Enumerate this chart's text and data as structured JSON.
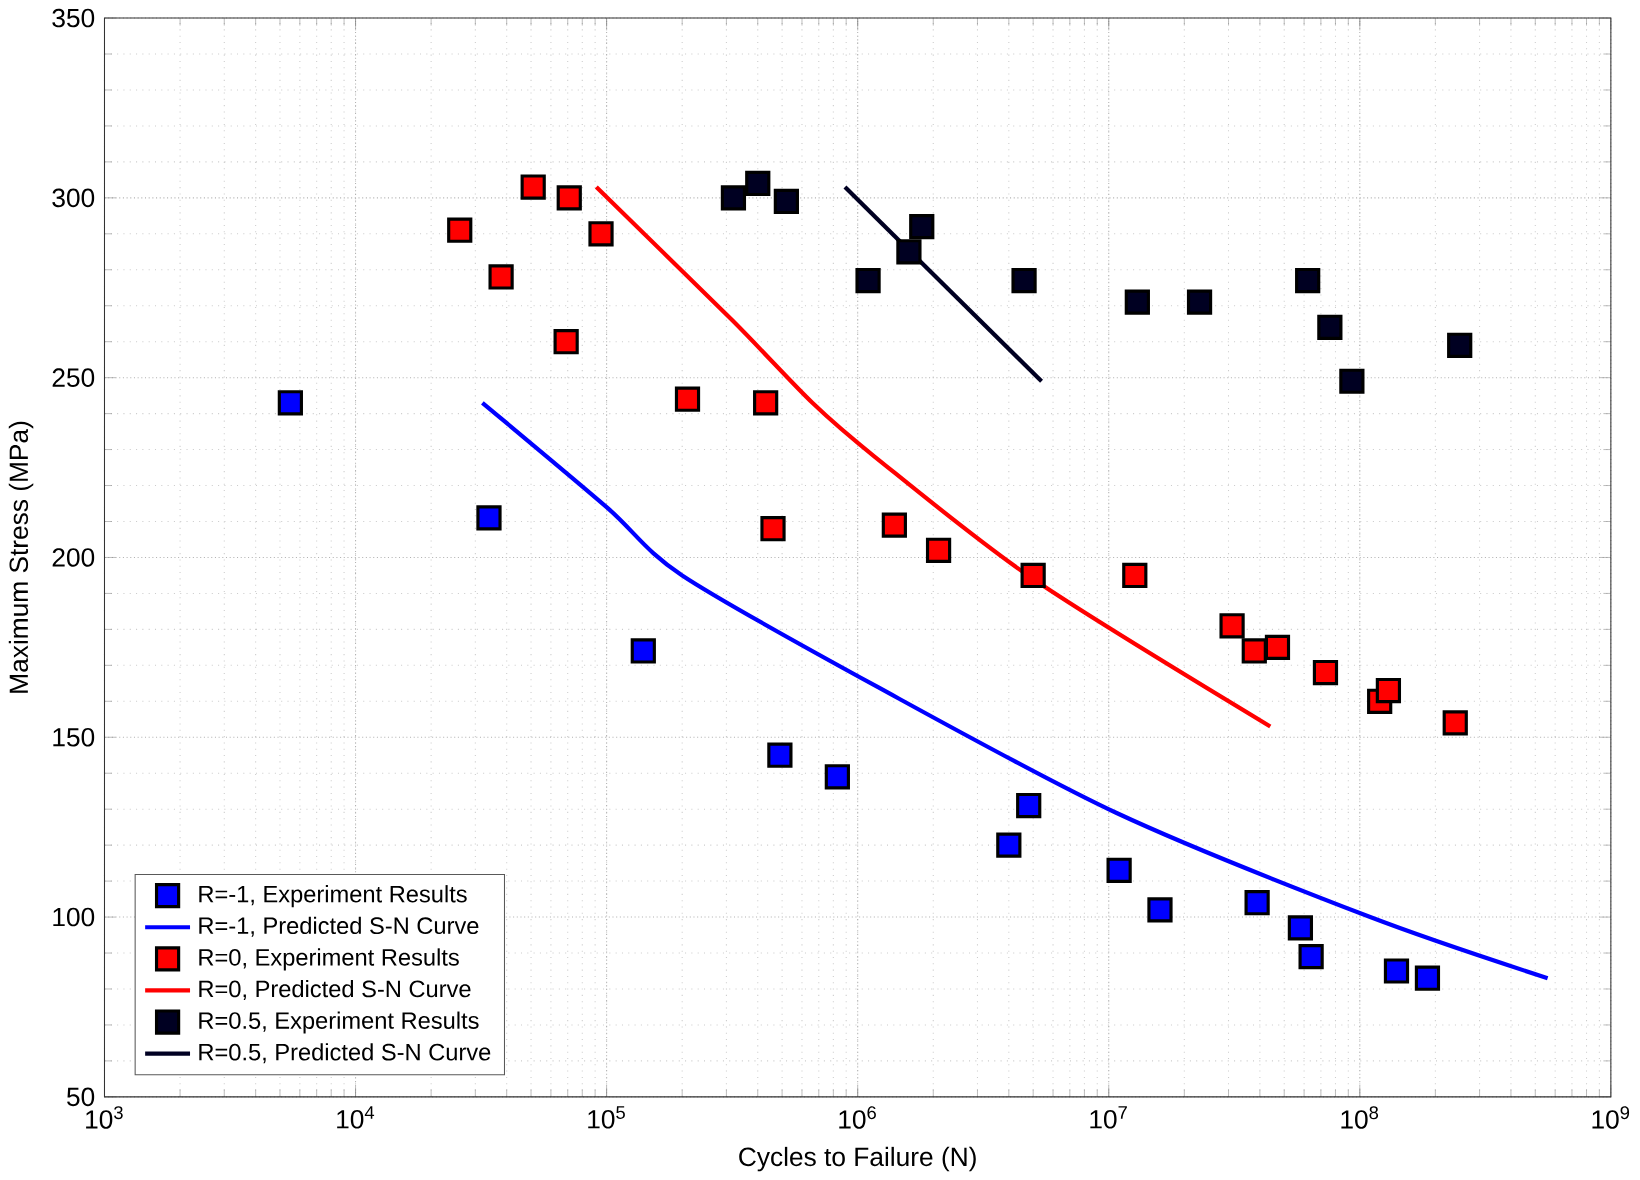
{
  "chart_data": {
    "type": "scatter",
    "xlabel": "Cycles to Failure (N)",
    "ylabel": "Maximum Stress (MPa)",
    "log": "x",
    "grid": true,
    "legend": "bottom left",
    "xlim": [
      1000,
      1000000000
    ],
    "ylim": [
      50,
      350
    ],
    "xticks": [
      {
        "value": 1000,
        "label": "10$^{3}$"
      },
      {
        "value": 10000,
        "label": "10$^{4}$"
      },
      {
        "value": 100000,
        "label": "10$^{5}$"
      },
      {
        "value": 1000000,
        "label": "10$^{6}$"
      },
      {
        "value": 10000000,
        "label": "10$^{7}$"
      },
      {
        "value": 100000000,
        "label": "10$^{8}$"
      },
      {
        "value": 1000000000,
        "label": "10$^{9}$"
      }
    ],
    "yticks": [
      50,
      100,
      150,
      200,
      250,
      300,
      350
    ],
    "series": [
      {
        "name": "R=-1, Experiment Results",
        "marker": "square",
        "color": "#0000ff",
        "x": [
          5500,
          34000,
          140000,
          490000,
          830000,
          4800000,
          4000000,
          11000000,
          16000000,
          39000000,
          58000000,
          64000000,
          140000000,
          186000000
        ],
        "values": [
          243,
          211,
          174,
          145,
          139,
          131,
          120,
          113,
          102,
          104,
          97,
          89,
          85,
          83
        ]
      },
      {
        "name": "R=-1, Predicted S-N Curve",
        "type": "line",
        "marker": "none",
        "color": "#0000ff",
        "x": [
          32000,
          100000,
          200000,
          1200000,
          10700000,
          110000000,
          560000000
        ],
        "values": [
          243,
          214,
          195,
          164,
          129,
          100,
          83
        ]
      },
      {
        "name": "R=0, Experiment Results",
        "marker": "square",
        "color": "#ff0000",
        "x": [
          26000,
          51000,
          71000,
          95000,
          38000,
          69000,
          210000,
          430000,
          460000,
          1400000,
          2100000,
          5000000,
          12700000,
          31000000,
          38000000,
          47000000,
          73000000,
          120000000,
          130000000,
          240000000
        ],
        "values": [
          291,
          303,
          300,
          290,
          278,
          260,
          244,
          243,
          208,
          209,
          202,
          195,
          195,
          181,
          174,
          175,
          168,
          160,
          163,
          154
        ]
      },
      {
        "name": "R=0, Predicted S-N Curve",
        "type": "line",
        "marker": "none",
        "color": "#ff0000",
        "x": [
          91000,
          316000,
          660000,
          1170000,
          5000000,
          44000000
        ],
        "values": [
          303,
          266,
          243,
          228,
          194,
          153
        ]
      },
      {
        "name": "R=0.5, Experiment Results",
        "marker": "square",
        "color": "#000022",
        "x": [
          320000,
          400000,
          520000,
          1100000,
          1600000,
          1800000,
          4600000,
          13000000,
          23000000,
          62000000,
          76000000,
          93000000,
          250000000
        ],
        "values": [
          300,
          304,
          299,
          277,
          285,
          292,
          277,
          271,
          271,
          277,
          264,
          249,
          259
        ]
      },
      {
        "name": "R=0.5, Predicted S-N Curve",
        "type": "line",
        "marker": "none",
        "color": "#000022",
        "x": [
          890000,
          5400000
        ],
        "values": [
          303,
          249
        ]
      }
    ]
  }
}
